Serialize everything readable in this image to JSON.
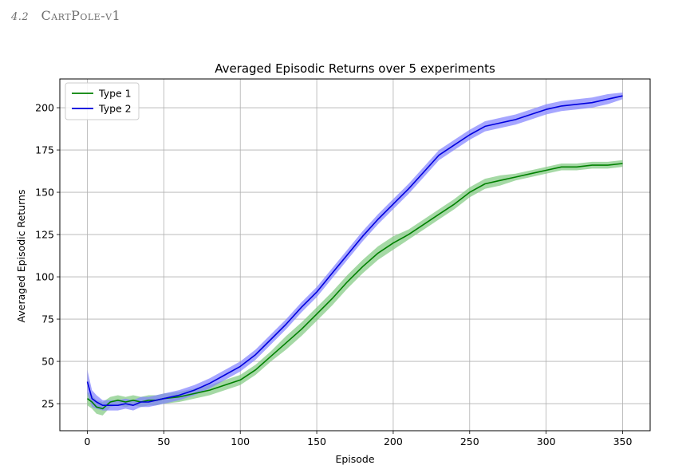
{
  "section": {
    "number": "4.2",
    "title": "CartPole-v1"
  },
  "chart_data": {
    "type": "line",
    "title": "Averaged Episodic Returns over 5 experiments",
    "xlabel": "Episode",
    "ylabel": "Averaged Episodic Returns",
    "xlim": [
      -18,
      368
    ],
    "ylim": [
      9,
      217
    ],
    "xticks": [
      0,
      50,
      100,
      150,
      200,
      250,
      300,
      350
    ],
    "yticks": [
      25,
      50,
      75,
      100,
      125,
      150,
      175,
      200
    ],
    "grid": true,
    "legend_position": "top-left",
    "x": [
      0,
      3,
      6,
      10,
      15,
      20,
      25,
      30,
      35,
      40,
      45,
      50,
      60,
      70,
      80,
      90,
      100,
      110,
      120,
      130,
      140,
      150,
      160,
      170,
      180,
      190,
      200,
      210,
      220,
      230,
      240,
      250,
      260,
      270,
      280,
      290,
      300,
      310,
      320,
      330,
      340,
      350
    ],
    "series": [
      {
        "name": "Type 1",
        "color": "#008000",
        "band_color": "#7fc97f",
        "values": [
          28,
          26,
          23,
          22,
          26,
          27,
          26,
          27,
          26,
          27,
          27,
          28,
          29,
          31,
          33,
          36,
          39,
          45,
          53,
          61,
          69,
          78,
          87,
          97,
          106,
          114,
          120,
          125,
          131,
          137,
          143,
          150,
          155,
          157,
          159,
          161,
          163,
          165,
          165,
          166,
          166,
          167
        ],
        "band": [
          4,
          4,
          4,
          4,
          3,
          3,
          3,
          3,
          3,
          3,
          3,
          3,
          3,
          3,
          3,
          3,
          3,
          3,
          3,
          4,
          4,
          4,
          4,
          4,
          4,
          4,
          4,
          3,
          3,
          3,
          3,
          3,
          3,
          3,
          2,
          2,
          2,
          2,
          2,
          2,
          2,
          2
        ]
      },
      {
        "name": "Type 2",
        "color": "#0000dd",
        "band_color": "#8080ff",
        "values": [
          38,
          28,
          26,
          24,
          24,
          24,
          25,
          24,
          26,
          26,
          27,
          28,
          30,
          33,
          37,
          42,
          47,
          54,
          63,
          72,
          82,
          91,
          102,
          113,
          124,
          134,
          143,
          152,
          162,
          172,
          178,
          184,
          189,
          191,
          193,
          196,
          199,
          201,
          202,
          203,
          205,
          207
        ],
        "band": [
          7,
          5,
          4,
          3,
          3,
          3,
          3,
          3,
          3,
          3,
          3,
          3,
          3,
          3,
          3,
          3,
          3,
          3,
          3,
          3,
          3,
          3,
          3,
          3,
          3,
          3,
          3,
          3,
          3,
          3,
          3,
          3,
          3,
          3,
          3,
          3,
          3,
          3,
          3,
          3,
          3,
          2
        ]
      }
    ]
  }
}
